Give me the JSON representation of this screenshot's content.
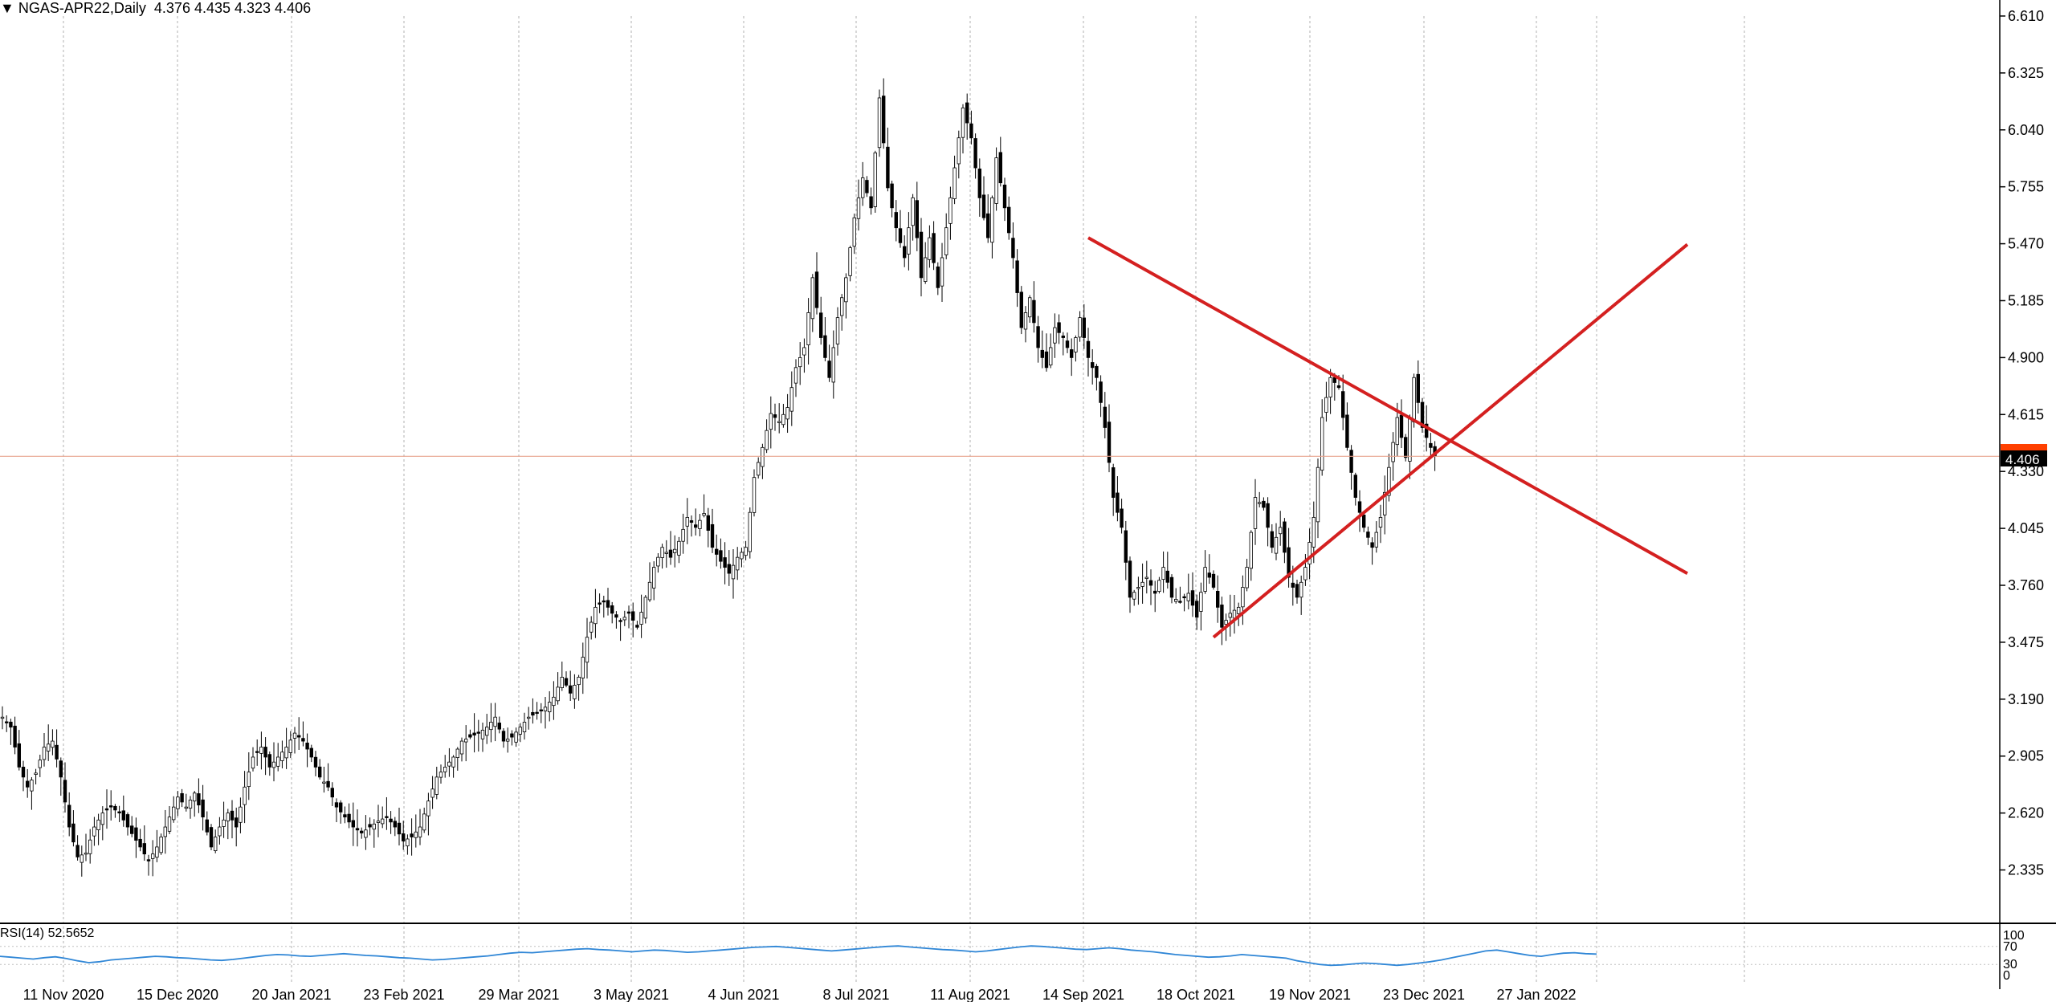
{
  "header": {
    "symbol_timeframe": "NGAS-APR22,Daily",
    "ohlc": "4.376 4.435 4.323 4.406"
  },
  "rsi_panel": {
    "label": "RSI(14) 52.5652"
  },
  "colors": {
    "background": "#ffffff",
    "candle_stroke": "#000000",
    "bid_line": "#e8a28c",
    "trendline": "#d42020",
    "rsi_line": "#2f86d6",
    "price_tag": "#000000",
    "price_tag_alt": "#ff4000"
  },
  "chart_data": [
    {
      "type": "candlestick",
      "ylim": [
        2.1,
        6.65
      ],
      "y_ticks": [
        6.61,
        6.325,
        6.04,
        5.755,
        5.47,
        5.185,
        4.9,
        4.615,
        4.33,
        4.045,
        3.76,
        3.475,
        3.19,
        2.905,
        2.62,
        2.335
      ],
      "current_price": 4.406,
      "current_price_label": "4.406",
      "x_date_labels": [
        "11 Nov 2020",
        "15 Dec 2020",
        "20 Jan 2021",
        "23 Feb 2021",
        "29 Mar 2021",
        "3 May 2021",
        "4 Jun 2021",
        "8 Jul 2021",
        "11 Aug 2021",
        "14 Sep 2021",
        "18 Oct 2021",
        "19 Nov 2021",
        "23 Dec 2021",
        "27 Jan 2022"
      ],
      "path_points": [
        [
          0,
          3.1
        ],
        [
          2,
          3.05
        ],
        [
          4,
          2.85
        ],
        [
          6,
          2.75
        ],
        [
          8,
          2.82
        ],
        [
          10,
          2.95
        ],
        [
          12,
          2.98
        ],
        [
          14,
          2.8
        ],
        [
          16,
          2.55
        ],
        [
          18,
          2.4
        ],
        [
          20,
          2.42
        ],
        [
          22,
          2.55
        ],
        [
          24,
          2.62
        ],
        [
          26,
          2.65
        ],
        [
          28,
          2.62
        ],
        [
          30,
          2.55
        ],
        [
          33,
          2.45
        ],
        [
          35,
          2.38
        ],
        [
          37,
          2.45
        ],
        [
          40,
          2.6
        ],
        [
          42,
          2.7
        ],
        [
          44,
          2.65
        ],
        [
          46,
          2.72
        ],
        [
          48,
          2.6
        ],
        [
          50,
          2.45
        ],
        [
          52,
          2.55
        ],
        [
          54,
          2.62
        ],
        [
          56,
          2.55
        ],
        [
          58,
          2.75
        ],
        [
          60,
          2.9
        ],
        [
          62,
          2.95
        ],
        [
          64,
          2.85
        ],
        [
          66,
          2.9
        ],
        [
          68,
          2.95
        ],
        [
          70,
          3.02
        ],
        [
          72,
          2.98
        ],
        [
          74,
          2.9
        ],
        [
          76,
          2.8
        ],
        [
          78,
          2.75
        ],
        [
          80,
          2.65
        ],
        [
          82,
          2.6
        ],
        [
          84,
          2.55
        ],
        [
          86,
          2.52
        ],
        [
          88,
          2.55
        ],
        [
          90,
          2.58
        ],
        [
          92,
          2.6
        ],
        [
          94,
          2.55
        ],
        [
          96,
          2.48
        ],
        [
          98,
          2.5
        ],
        [
          100,
          2.55
        ],
        [
          102,
          2.68
        ],
        [
          104,
          2.8
        ],
        [
          106,
          2.85
        ],
        [
          108,
          2.9
        ],
        [
          110,
          2.98
        ],
        [
          112,
          3.0
        ],
        [
          114,
          3.02
        ],
        [
          116,
          3.05
        ],
        [
          118,
          3.1
        ],
        [
          120,
          2.98
        ],
        [
          122,
          3.0
        ],
        [
          124,
          3.05
        ],
        [
          126,
          3.1
        ],
        [
          128,
          3.12
        ],
        [
          130,
          3.15
        ],
        [
          132,
          3.2
        ],
        [
          134,
          3.3
        ],
        [
          136,
          3.22
        ],
        [
          138,
          3.3
        ],
        [
          140,
          3.5
        ],
        [
          142,
          3.65
        ],
        [
          144,
          3.68
        ],
        [
          146,
          3.62
        ],
        [
          148,
          3.58
        ],
        [
          150,
          3.62
        ],
        [
          152,
          3.55
        ],
        [
          154,
          3.7
        ],
        [
          156,
          3.85
        ],
        [
          158,
          3.95
        ],
        [
          160,
          3.9
        ],
        [
          162,
          3.98
        ],
        [
          164,
          4.1
        ],
        [
          166,
          4.05
        ],
        [
          168,
          4.12
        ],
        [
          170,
          3.95
        ],
        [
          172,
          3.88
        ],
        [
          174,
          3.82
        ],
        [
          176,
          3.9
        ],
        [
          178,
          3.95
        ],
        [
          180,
          4.3
        ],
        [
          182,
          4.45
        ],
        [
          184,
          4.62
        ],
        [
          186,
          4.58
        ],
        [
          188,
          4.65
        ],
        [
          190,
          4.85
        ],
        [
          192,
          4.95
        ],
        [
          194,
          5.3
        ],
        [
          196,
          5.0
        ],
        [
          198,
          4.8
        ],
        [
          200,
          5.1
        ],
        [
          202,
          5.3
        ],
        [
          204,
          5.6
        ],
        [
          206,
          5.8
        ],
        [
          208,
          5.65
        ],
        [
          210,
          6.2
        ],
        [
          212,
          5.75
        ],
        [
          214,
          5.55
        ],
        [
          216,
          5.4
        ],
        [
          218,
          5.7
        ],
        [
          220,
          5.3
        ],
        [
          222,
          5.5
        ],
        [
          224,
          5.25
        ],
        [
          226,
          5.55
        ],
        [
          228,
          5.85
        ],
        [
          230,
          6.15
        ],
        [
          232,
          6.0
        ],
        [
          234,
          5.7
        ],
        [
          236,
          5.5
        ],
        [
          238,
          5.9
        ],
        [
          240,
          5.65
        ],
        [
          242,
          5.4
        ],
        [
          244,
          5.05
        ],
        [
          246,
          5.2
        ],
        [
          248,
          4.95
        ],
        [
          250,
          4.85
        ],
        [
          252,
          5.05
        ],
        [
          254,
          5.0
        ],
        [
          256,
          4.9
        ],
        [
          258,
          5.1
        ],
        [
          260,
          4.9
        ],
        [
          262,
          4.8
        ],
        [
          264,
          4.55
        ],
        [
          266,
          4.2
        ],
        [
          268,
          4.05
        ],
        [
          270,
          3.7
        ],
        [
          272,
          3.75
        ],
        [
          274,
          3.8
        ],
        [
          276,
          3.72
        ],
        [
          278,
          3.85
        ],
        [
          280,
          3.7
        ],
        [
          282,
          3.68
        ],
        [
          284,
          3.72
        ],
        [
          286,
          3.6
        ],
        [
          288,
          3.85
        ],
        [
          290,
          3.75
        ],
        [
          292,
          3.55
        ],
        [
          294,
          3.62
        ],
        [
          296,
          3.65
        ],
        [
          298,
          3.85
        ],
        [
          300,
          4.2
        ],
        [
          302,
          4.15
        ],
        [
          304,
          3.95
        ],
        [
          306,
          4.05
        ],
        [
          308,
          3.8
        ],
        [
          310,
          3.7
        ],
        [
          312,
          3.85
        ],
        [
          314,
          4.1
        ],
        [
          316,
          4.6
        ],
        [
          318,
          4.8
        ],
        [
          320,
          4.75
        ],
        [
          322,
          4.45
        ],
        [
          324,
          4.2
        ],
        [
          326,
          4.05
        ],
        [
          328,
          3.95
        ],
        [
          330,
          4.1
        ],
        [
          332,
          4.35
        ],
        [
          334,
          4.6
        ],
        [
          336,
          4.4
        ],
        [
          338,
          4.8
        ],
        [
          340,
          4.55
        ],
        [
          342,
          4.45
        ],
        [
          343,
          4.406
        ]
      ],
      "trendlines": [
        {
          "name": "upper",
          "from": [
            260,
            5.5
          ],
          "to": [
            365,
            4.27
          ]
        },
        {
          "name": "lower",
          "from": [
            290,
            3.5
          ],
          "to": [
            365,
            4.8
          ]
        }
      ]
    },
    {
      "type": "line",
      "title": "RSI(14) 52.5652",
      "ylim": [
        0,
        100
      ],
      "y_ticks": [
        100,
        70,
        30,
        0
      ],
      "values": [
        48,
        46,
        44,
        42,
        45,
        47,
        43,
        38,
        34,
        36,
        40,
        42,
        44,
        46,
        48,
        47,
        45,
        44,
        42,
        40,
        39,
        41,
        44,
        47,
        50,
        52,
        51,
        49,
        48,
        50,
        52,
        54,
        52,
        50,
        49,
        47,
        45,
        44,
        42,
        40,
        41,
        43,
        45,
        47,
        49,
        52,
        55,
        57,
        56,
        58,
        60,
        62,
        64,
        65,
        63,
        62,
        60,
        58,
        60,
        62,
        61,
        59,
        57,
        58,
        60,
        62,
        64,
        66,
        68,
        69,
        70,
        68,
        66,
        64,
        62,
        60,
        62,
        64,
        66,
        68,
        70,
        71,
        69,
        67,
        65,
        63,
        62,
        60,
        58,
        60,
        63,
        66,
        69,
        71,
        70,
        68,
        66,
        64,
        63,
        65,
        67,
        65,
        62,
        60,
        58,
        55,
        52,
        50,
        48,
        46,
        47,
        49,
        52,
        50,
        48,
        46,
        44,
        38,
        34,
        30,
        28,
        29,
        31,
        33,
        32,
        30,
        28,
        30,
        33,
        36,
        40,
        45,
        50,
        55,
        60,
        62,
        58,
        54,
        50,
        48,
        52,
        55,
        56,
        54,
        53
      ]
    }
  ]
}
